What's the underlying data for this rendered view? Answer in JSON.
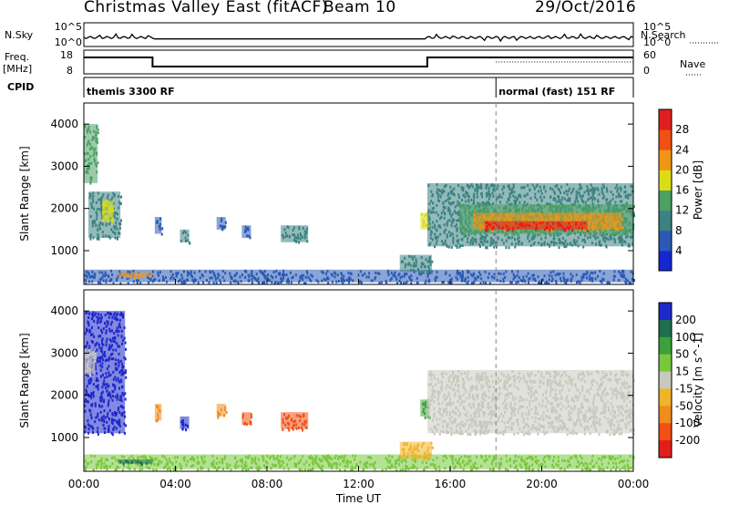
{
  "header": {
    "title": "Christmas Valley East (fitACF)",
    "beam": "Beam 10",
    "date": "29/Oct/2016"
  },
  "top_panels": {
    "nsky_label": "N.Sky",
    "nsearch_label": "N.Search",
    "noise_ticks": [
      "10^5",
      "10^0"
    ],
    "freq_label_1": "Freq.",
    "freq_label_2": "[MHz]",
    "freq_ticks": [
      "18",
      "8"
    ],
    "nave_label": "Nave",
    "nave_ticks": [
      "60",
      "0"
    ],
    "cpid_label": "CPID",
    "cpid_segments": [
      {
        "label": "themis 3300 RF",
        "start_hour": 0,
        "end_hour": 18
      },
      {
        "label": "normal (fast) 151 RF",
        "start_hour": 18,
        "end_hour": 24
      }
    ],
    "frequency_segments": [
      {
        "start_hour": 0,
        "end_hour": 3,
        "level": "high"
      },
      {
        "start_hour": 3,
        "end_hour": 15,
        "level": "low"
      },
      {
        "start_hour": 15,
        "end_hour": 24,
        "level": "high"
      }
    ]
  },
  "chart_data": [
    {
      "type": "heatmap",
      "panel": "power",
      "ylabel": "Slant Range [km]",
      "yticks": [
        "1000",
        "2000",
        "3000",
        "4000"
      ],
      "ylim": [
        200,
        4500
      ],
      "xlim": [
        0,
        24
      ],
      "colorbar_label": "Power [dB]",
      "colorbar_ticks": [
        "4",
        "8",
        "12",
        "16",
        "20",
        "24",
        "28"
      ],
      "colors": [
        "#1428d2",
        "#2a5ab4",
        "#3c8282",
        "#4ca064",
        "#dcdc14",
        "#f09614",
        "#f05014",
        "#e11e1e"
      ],
      "patches": [
        {
          "x": [
            0.0,
            0.6
          ],
          "y": [
            2600,
            4000
          ],
          "color": "#4ca064"
        },
        {
          "x": [
            0.2,
            1.6
          ],
          "y": [
            1300,
            2400
          ],
          "color": "#3c8282"
        },
        {
          "x": [
            0.8,
            1.3
          ],
          "y": [
            1700,
            2200
          ],
          "color": "#dcdc14"
        },
        {
          "x": [
            3.1,
            3.4
          ],
          "y": [
            1400,
            1800
          ],
          "color": "#2a5ab4"
        },
        {
          "x": [
            4.2,
            4.6
          ],
          "y": [
            1200,
            1500
          ],
          "color": "#3c8282"
        },
        {
          "x": [
            5.8,
            6.2
          ],
          "y": [
            1500,
            1800
          ],
          "color": "#2a5ab4"
        },
        {
          "x": [
            6.9,
            7.3
          ],
          "y": [
            1300,
            1600
          ],
          "color": "#2a5ab4"
        },
        {
          "x": [
            8.6,
            9.8
          ],
          "y": [
            1200,
            1600
          ],
          "color": "#3c8282"
        },
        {
          "x": [
            0.0,
            24.0
          ],
          "y": [
            250,
            550
          ],
          "color": "#2a5ab4"
        },
        {
          "x": [
            1.5,
            3.0
          ],
          "y": [
            380,
            480
          ],
          "color": "#f09614"
        },
        {
          "x": [
            13.8,
            15.2
          ],
          "y": [
            500,
            900
          ],
          "color": "#3c8282"
        },
        {
          "x": [
            14.7,
            15.1
          ],
          "y": [
            1500,
            1900
          ],
          "color": "#dcdc14"
        },
        {
          "x": [
            15.0,
            24.0
          ],
          "y": [
            1100,
            2600
          ],
          "color": "#3c8282"
        },
        {
          "x": [
            16.4,
            24.0
          ],
          "y": [
            1400,
            2100
          ],
          "color": "#4ca064"
        },
        {
          "x": [
            17.0,
            23.5
          ],
          "y": [
            1500,
            1900
          ],
          "color": "#f09614"
        },
        {
          "x": [
            17.5,
            22.0
          ],
          "y": [
            1500,
            1700
          ],
          "color": "#e11e1e"
        }
      ]
    },
    {
      "type": "heatmap",
      "panel": "velocity",
      "ylabel": "Slant Range [km]",
      "xlabel": "Time UT",
      "yticks": [
        "1000",
        "2000",
        "3000",
        "4000"
      ],
      "xticks": [
        "00:00",
        "04:00",
        "08:00",
        "12:00",
        "16:00",
        "20:00",
        "00:00"
      ],
      "ylim": [
        200,
        4500
      ],
      "xlim": [
        0,
        24
      ],
      "colorbar_label": "Velocity [m s^-1]",
      "colorbar_ticks": [
        "200",
        "100",
        "50",
        "15",
        "-15",
        "-50",
        "-100",
        "-200"
      ],
      "colors": [
        "#1e28c8",
        "#1e6e50",
        "#3ca03c",
        "#78c83c",
        "#c8c8be",
        "#f0b428",
        "#f08c1e",
        "#f05014",
        "#e11e1e"
      ],
      "patches": [
        {
          "x": [
            0.0,
            1.8
          ],
          "y": [
            1100,
            4000
          ],
          "color": "#1e28c8"
        },
        {
          "x": [
            0.0,
            0.5
          ],
          "y": [
            2500,
            3100
          ],
          "color": "#c8c8be"
        },
        {
          "x": [
            3.1,
            3.4
          ],
          "y": [
            1400,
            1800
          ],
          "color": "#f08c1e"
        },
        {
          "x": [
            4.2,
            4.6
          ],
          "y": [
            1200,
            1500
          ],
          "color": "#1e28c8"
        },
        {
          "x": [
            5.8,
            6.2
          ],
          "y": [
            1500,
            1800
          ],
          "color": "#f08c1e"
        },
        {
          "x": [
            6.9,
            7.3
          ],
          "y": [
            1300,
            1600
          ],
          "color": "#f05014"
        },
        {
          "x": [
            8.6,
            9.8
          ],
          "y": [
            1200,
            1600
          ],
          "color": "#f05014"
        },
        {
          "x": [
            0.0,
            24.0
          ],
          "y": [
            250,
            600
          ],
          "color": "#78c83c"
        },
        {
          "x": [
            1.5,
            3.0
          ],
          "y": [
            380,
            480
          ],
          "color": "#1e6e50"
        },
        {
          "x": [
            13.8,
            15.2
          ],
          "y": [
            500,
            900
          ],
          "color": "#f0b428"
        },
        {
          "x": [
            14.7,
            15.1
          ],
          "y": [
            1500,
            1900
          ],
          "color": "#3ca03c"
        },
        {
          "x": [
            15.0,
            24.0
          ],
          "y": [
            1100,
            2600
          ],
          "color": "#c8c8be"
        }
      ]
    }
  ]
}
